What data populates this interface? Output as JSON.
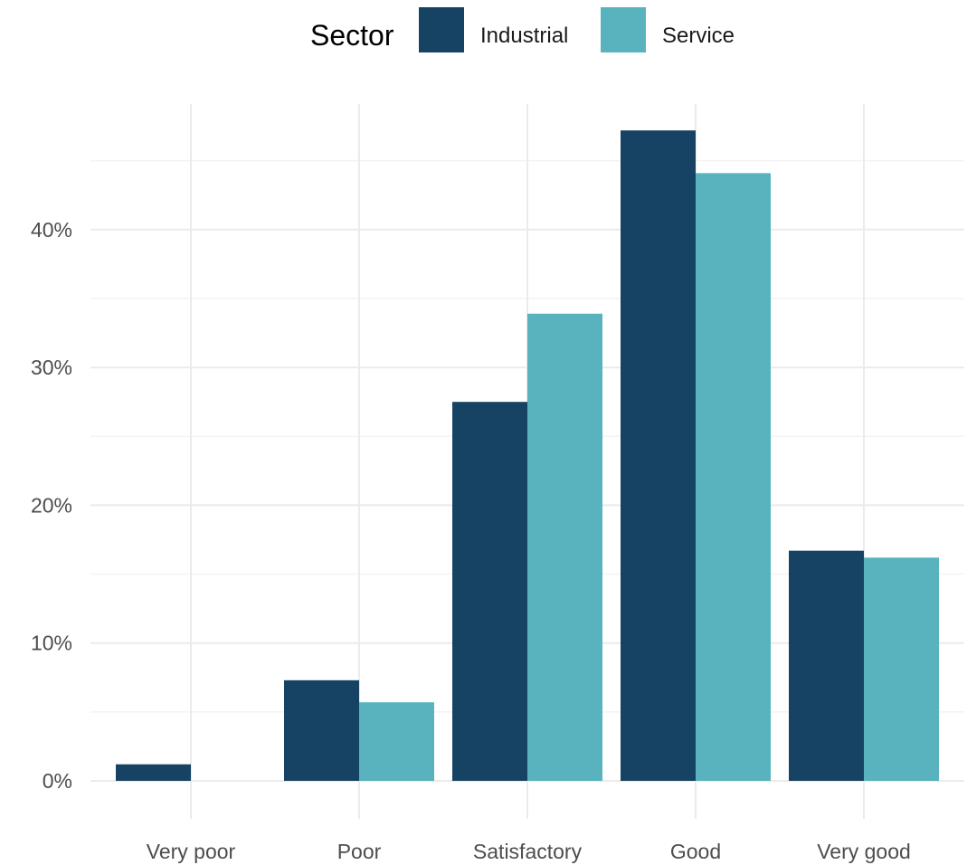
{
  "chart_data": {
    "type": "bar",
    "title": "",
    "xlabel": "",
    "ylabel": "",
    "categories": [
      "Very poor",
      "Poor",
      "Satisfactory",
      "Good",
      "Very good"
    ],
    "series": [
      {
        "name": "Industrial",
        "color": "#164363",
        "values": [
          1.2,
          7.3,
          27.5,
          47.2,
          16.7
        ]
      },
      {
        "name": "Service",
        "color": "#58b3bf",
        "values": [
          0.0,
          5.7,
          33.9,
          44.1,
          16.2
        ]
      }
    ],
    "y_ticks": [
      0,
      10,
      20,
      30,
      40
    ],
    "y_tick_labels": [
      "0%",
      "10%",
      "20%",
      "30%",
      "40%"
    ],
    "ylim": [
      0,
      47.2
    ],
    "grid": true,
    "legend": {
      "title": "Sector",
      "placement": "top-center"
    }
  }
}
